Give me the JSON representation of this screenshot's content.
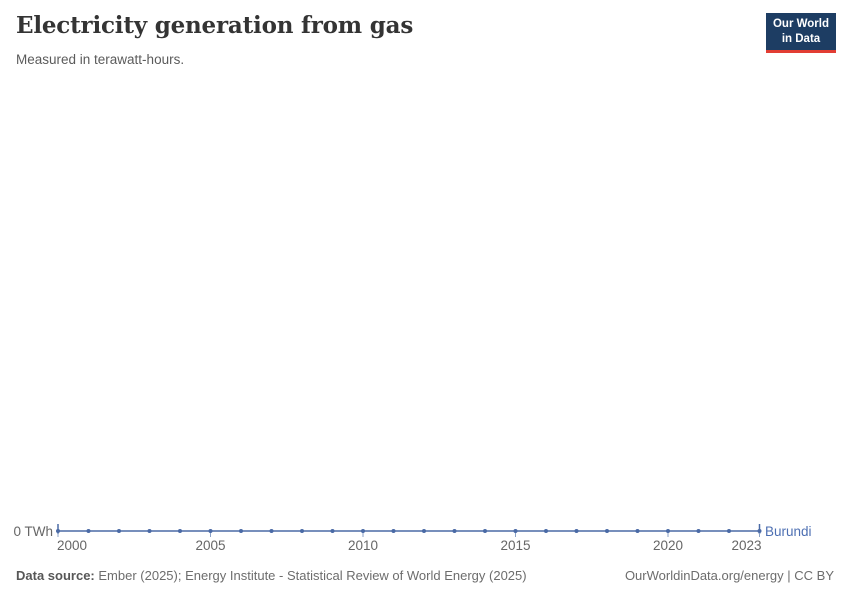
{
  "header": {
    "title": "Electricity generation from gas",
    "subtitle": "Measured in terawatt-hours.",
    "logo": {
      "line1": "Our World",
      "line2": "in Data",
      "bg_color": "#1d3d63",
      "accent_color": "#e23d33",
      "text_color": "#ffffff"
    }
  },
  "chart_data": {
    "type": "line",
    "title": "Electricity generation from gas",
    "subtitle": "Measured in terawatt-hours.",
    "xlabel": "",
    "ylabel": "",
    "xlim": [
      2000,
      2023
    ],
    "ylim": [
      0,
      0
    ],
    "grid": false,
    "legend": "end-of-line entity label",
    "y_axis_label": "0 TWh",
    "y_ticks": [
      0
    ],
    "x_ticks": [
      2000,
      2005,
      2010,
      2015,
      2020,
      2023
    ],
    "x_tick_labels": [
      "2000",
      "2005",
      "2010",
      "2015",
      "2020",
      "2023"
    ],
    "series": [
      {
        "name": "Burundi",
        "color": "#4a6aa6",
        "label_color": "#4d6fb2",
        "x": [
          2000,
          2001,
          2002,
          2003,
          2004,
          2005,
          2006,
          2007,
          2008,
          2009,
          2010,
          2011,
          2012,
          2013,
          2014,
          2015,
          2016,
          2017,
          2018,
          2019,
          2020,
          2021,
          2022,
          2023
        ],
        "values": [
          0,
          0,
          0,
          0,
          0,
          0,
          0,
          0,
          0,
          0,
          0,
          0,
          0,
          0,
          0,
          0,
          0,
          0,
          0,
          0,
          0,
          0,
          0,
          0
        ]
      }
    ]
  },
  "footer": {
    "source_label": "Data source:",
    "source_text": "Ember (2025); Energy Institute - Statistical Review of World Energy (2025)",
    "credit": "OurWorldinData.org/energy | CC BY"
  }
}
